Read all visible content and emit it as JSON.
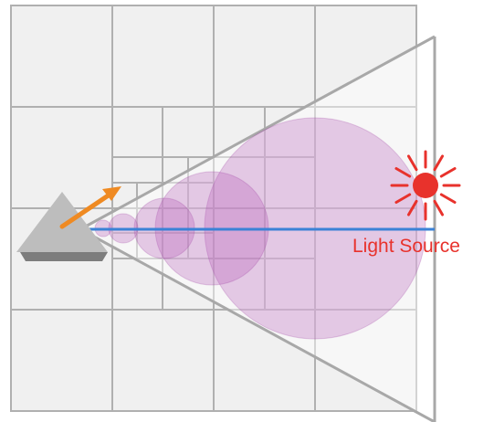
{
  "labels": {
    "light_source": "Light Source"
  },
  "icons": {
    "camera": "camera-icon",
    "direction": "arrow-icon",
    "light": "sun-icon"
  },
  "colors": {
    "grid_fill": "#f0f0f0",
    "grid_line": "#b0b0b0",
    "frustum_line": "#a8a8a8",
    "sphere_fill": "#b04fb5",
    "sphere_stroke": "#9a3aa0",
    "ray": "#3b82d6",
    "arrow": "#ef8a22",
    "light": "#e8322c",
    "label": "#e8322c",
    "camera_body": "#bdbdbd",
    "camera_base": "#7d7d7d"
  }
}
